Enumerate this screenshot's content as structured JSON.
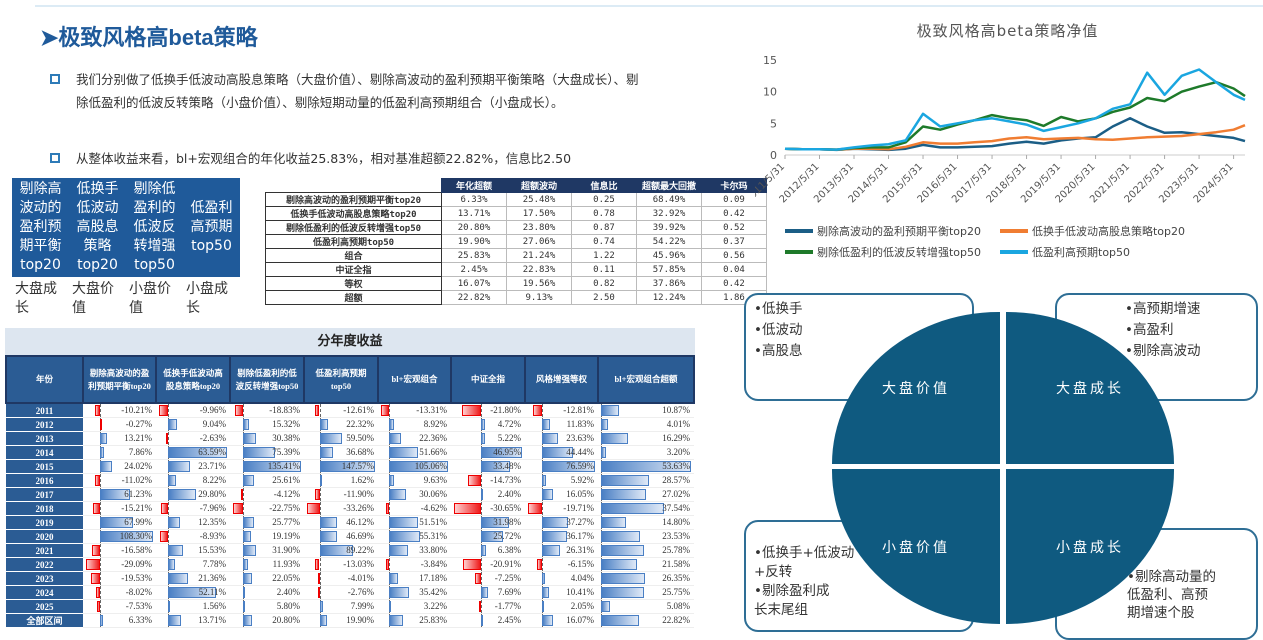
{
  "title": "➤极致风格高beta策略",
  "bullets": [
    "我们分别做了低换手低波动高股息策略（大盘价值）、剔除高波动的盈利预期平衡策略（大盘成长）、剔除低盈利的低波反转策略（小盘价值）、剔除短期动量的低盈利高预期组合（小盘成长）。",
    "从整体收益来看，bl+宏观组合的年化收益25.83%，相对基准超额22.82%，信息比2.50"
  ],
  "strategy_box": {
    "names": [
      "剔除高波动的盈利预期平衡top20",
      "低换手低波动高股息策略top20",
      "剔除低盈利的低波反转增强top50",
      "低盈利高预期top50"
    ],
    "styles": [
      "大盘成长",
      "大盘价值",
      "小盘价值",
      "小盘成长"
    ]
  },
  "metrics_table": {
    "headers": [
      "年化超额",
      "超额波动",
      "信息比",
      "超额最大回撤",
      "卡尔玛"
    ],
    "rows": [
      [
        "剔除高波动的盈利预期平衡top20",
        "6.33%",
        "25.48%",
        "0.25",
        "68.49%",
        "0.09"
      ],
      [
        "低换手低波动高股息策略top20",
        "13.71%",
        "17.50%",
        "0.78",
        "32.92%",
        "0.42"
      ],
      [
        "剔除低盈利的低波反转增强top50",
        "20.80%",
        "23.80%",
        "0.87",
        "39.92%",
        "0.52"
      ],
      [
        "低盈利高预期top50",
        "19.90%",
        "27.06%",
        "0.74",
        "54.22%",
        "0.37"
      ],
      [
        "组合",
        "25.83%",
        "21.24%",
        "1.22",
        "45.96%",
        "0.56"
      ],
      [
        "中证全指",
        "2.45%",
        "22.83%",
        "0.11",
        "57.85%",
        "0.04"
      ],
      [
        "等权",
        "16.07%",
        "19.56%",
        "0.82",
        "37.86%",
        "0.42"
      ],
      [
        "超额",
        "22.82%",
        "9.13%",
        "2.50",
        "12.24%",
        "1.86"
      ]
    ]
  },
  "annual_table": {
    "title": "分年度收益",
    "headers": [
      "年份",
      "剔除高波动的盈利预期平衡top20",
      "低换手低波动高股息策略top20",
      "剔除低盈利的低波反转增强top50",
      "低盈利高预期top50",
      "bl+宏观组合",
      "中证全指",
      "风格增强等权",
      "bl+宏观组合超额"
    ],
    "rows": [
      [
        "2011",
        -10.21,
        -9.96,
        -18.83,
        -12.61,
        -13.31,
        -21.8,
        -12.81,
        10.87
      ],
      [
        "2012",
        -0.27,
        9.04,
        15.32,
        22.32,
        8.92,
        4.72,
        11.83,
        4.01
      ],
      [
        "2013",
        13.21,
        -2.63,
        30.38,
        59.5,
        22.36,
        5.22,
        23.63,
        16.29
      ],
      [
        "2014",
        7.86,
        63.59,
        75.39,
        36.68,
        51.66,
        46.95,
        44.44,
        3.2
      ],
      [
        "2015",
        24.02,
        23.71,
        135.41,
        147.57,
        105.06,
        33.48,
        76.59,
        53.63
      ],
      [
        "2016",
        -11.02,
        8.22,
        25.61,
        1.62,
        9.63,
        -14.73,
        5.92,
        28.57
      ],
      [
        "2017",
        61.23,
        29.8,
        -4.12,
        -11.9,
        30.06,
        2.4,
        16.05,
        27.02
      ],
      [
        "2018",
        -15.21,
        -7.96,
        -22.75,
        -33.26,
        -4.62,
        -30.65,
        -19.71,
        37.54
      ],
      [
        "2019",
        67.99,
        12.35,
        25.77,
        46.12,
        51.51,
        31.98,
        37.27,
        14.8
      ],
      [
        "2020",
        108.3,
        -8.93,
        19.19,
        46.69,
        55.31,
        25.72,
        36.17,
        23.53
      ],
      [
        "2021",
        -16.58,
        15.53,
        31.9,
        89.22,
        33.8,
        6.38,
        26.31,
        25.78
      ],
      [
        "2022",
        -29.09,
        7.78,
        11.93,
        -13.03,
        -3.84,
        -20.91,
        -6.15,
        21.58
      ],
      [
        "2023",
        -19.53,
        21.36,
        22.05,
        -4.01,
        17.18,
        -7.25,
        4.04,
        26.35
      ],
      [
        "2024",
        -8.02,
        52.11,
        2.4,
        -2.76,
        35.42,
        7.69,
        10.41,
        25.75
      ],
      [
        "2025",
        -7.53,
        1.56,
        5.8,
        7.99,
        3.22,
        -1.77,
        2.05,
        5.08
      ],
      [
        "全部区间",
        6.33,
        13.71,
        20.8,
        19.9,
        25.83,
        2.45,
        16.07,
        22.82
      ]
    ]
  },
  "chart_data": {
    "type": "line",
    "title": "极致风格高beta策略净值",
    "ylim": [
      0,
      15
    ],
    "yticks": [
      0,
      5,
      10,
      15
    ],
    "xticks": [
      "2011/5/31",
      "2012/5/31",
      "2013/5/31",
      "2014/5/31",
      "2015/5/31",
      "2016/5/31",
      "2017/5/31",
      "2018/5/31",
      "2019/5/31",
      "2020/5/31",
      "2021/5/31",
      "2022/5/31",
      "2023/5/31",
      "2024/5/31"
    ],
    "x": [
      "2011/5/31",
      "2011/11/30",
      "2012/5/31",
      "2012/11/30",
      "2013/5/31",
      "2013/11/30",
      "2014/5/31",
      "2014/11/30",
      "2015/5/31",
      "2015/11/30",
      "2016/5/31",
      "2016/11/30",
      "2017/5/31",
      "2017/11/30",
      "2018/5/31",
      "2018/11/30",
      "2019/5/31",
      "2019/11/30",
      "2020/5/31",
      "2020/11/30",
      "2021/5/31",
      "2021/11/30",
      "2022/5/31",
      "2022/11/30",
      "2023/5/31",
      "2023/11/30",
      "2024/5/31",
      "2024/9/30"
    ],
    "legend": "bottom",
    "series": [
      {
        "name": "剔除高波动的盈利预期平衡top20",
        "color": "#1b5e86",
        "values": [
          1.0,
          0.9,
          0.9,
          0.8,
          1.0,
          0.9,
          0.8,
          1.0,
          1.6,
          1.2,
          1.2,
          1.3,
          1.4,
          1.8,
          2.1,
          1.8,
          2.3,
          2.6,
          2.8,
          4.5,
          5.8,
          4.5,
          3.5,
          3.6,
          3.3,
          3.0,
          2.7,
          2.2
        ]
      },
      {
        "name": "低换手低波动高股息策略top20",
        "color": "#f07d32",
        "values": [
          1.0,
          0.9,
          0.9,
          0.85,
          1.0,
          1.0,
          0.9,
          1.3,
          2.0,
          1.8,
          1.8,
          2.0,
          2.2,
          2.6,
          2.8,
          2.5,
          2.6,
          2.7,
          2.5,
          2.4,
          2.6,
          2.8,
          2.9,
          3.0,
          3.3,
          3.6,
          4.0,
          4.7
        ]
      },
      {
        "name": "剔除低盈利的低波反转增强top50",
        "color": "#1e7a2a",
        "values": [
          1.0,
          0.9,
          0.9,
          0.85,
          1.1,
          1.2,
          1.2,
          2.0,
          4.5,
          4.0,
          4.8,
          5.5,
          6.3,
          5.8,
          5.5,
          4.6,
          6.0,
          5.3,
          5.8,
          6.8,
          7.5,
          9.0,
          8.5,
          10.0,
          10.8,
          11.5,
          10.5,
          9.3
        ]
      },
      {
        "name": "低盈利高预期top50",
        "color": "#1aa6e0",
        "values": [
          1.0,
          0.9,
          0.9,
          0.85,
          1.2,
          1.5,
          1.7,
          2.3,
          6.5,
          4.5,
          5.0,
          5.5,
          5.8,
          5.3,
          4.8,
          3.8,
          4.4,
          5.0,
          5.8,
          7.3,
          8.0,
          13.0,
          9.5,
          12.5,
          13.5,
          11.5,
          9.5,
          8.7
        ]
      }
    ]
  },
  "quadrant": {
    "big_value": {
      "label": "大盘价值",
      "items": [
        "•低换手",
        "•低波动",
        "•高股息"
      ]
    },
    "big_growth": {
      "label": "大盘成长",
      "items": [
        "•高预期增速",
        "•高盈利",
        "•剔除高波动"
      ]
    },
    "small_value": {
      "label": "小盘价值",
      "items": [
        "•低换手+低波动",
        "+反转",
        "•剔除盈利成",
        "长末尾组"
      ]
    },
    "small_growth": {
      "label": "小盘成长",
      "items": [
        "•剔除高动量的",
        "低盈利、高预",
        "期增速个股"
      ]
    }
  },
  "colors": {
    "title": "#1f5a9a",
    "header": "#2b5c94",
    "quadrant": "#0f5a80",
    "positive_bar": "#4a7fc4",
    "negative_bar": "#ee1c1c"
  }
}
